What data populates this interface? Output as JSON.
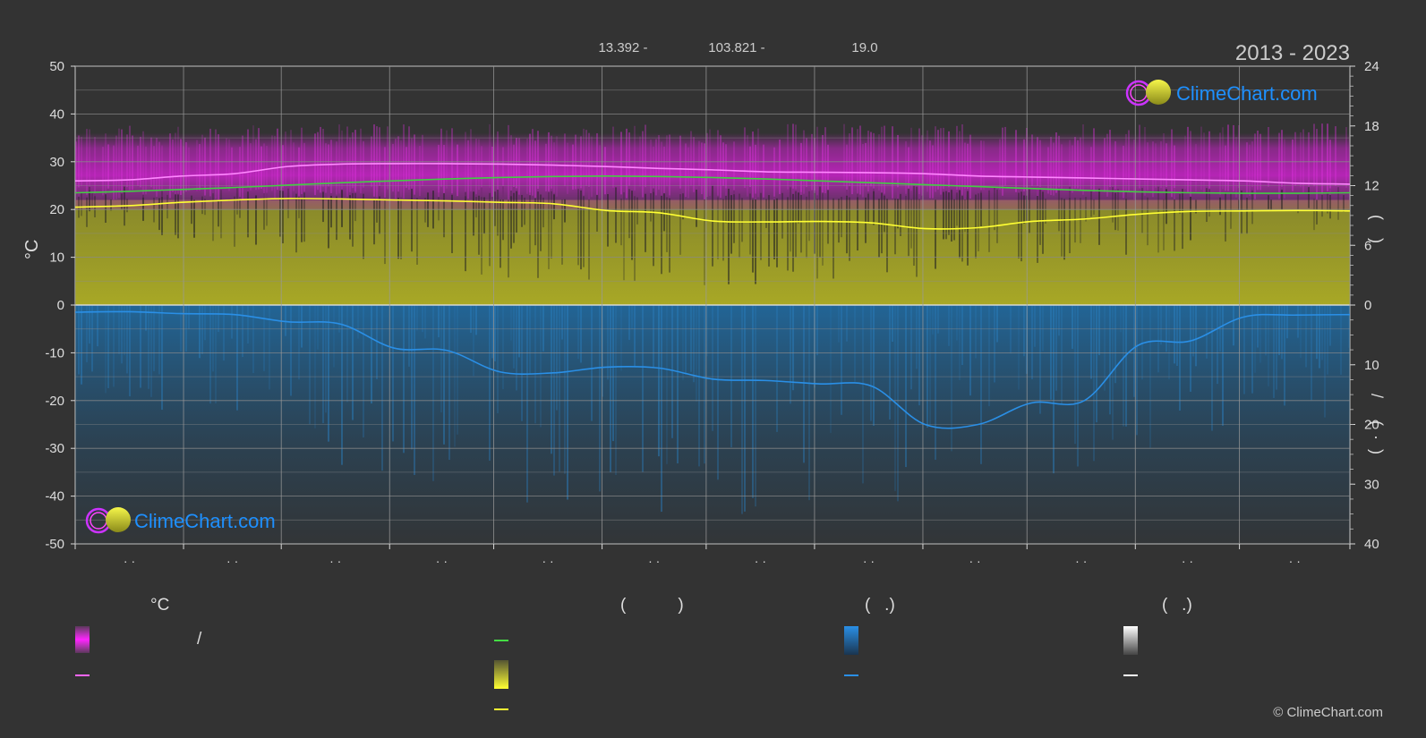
{
  "header": {
    "coord_lat": "13.392 -",
    "coord_lon": "103.821 -",
    "elevation": "19.0",
    "period": "2013 - 2023"
  },
  "brand": {
    "logo_text": "ClimeChart.com",
    "copyright": "© ClimeChart.com"
  },
  "colors": {
    "background": "#333333",
    "max_temp_band": "#cc22cc",
    "sunshine_fill": "#b3b31a",
    "rain_fill": "#1f6ea8",
    "daylight_line": "#44cc44",
    "mean_max_line": "#ff88ff",
    "sunshine_line": "#ffff33",
    "rain_line": "#2a8fe6",
    "logo_text": "#1e90ff"
  },
  "axes": {
    "left_unit": "°C",
    "left_ticks": [
      "50",
      "40",
      "30",
      "20",
      "10",
      "0",
      "-10",
      "-20",
      "-30",
      "-40",
      "-50"
    ],
    "right_top_ticks": [
      "24",
      "18",
      "12",
      "6",
      "0"
    ],
    "right_bottom_ticks": [
      "10",
      "20",
      "30",
      "40"
    ],
    "right_top_label": "(    )",
    "right_bottom_label": "/     (  ·  )",
    "month_labels": [
      "· ·",
      "· ·",
      "· ·",
      "· ·",
      "· ·",
      "· ·",
      "· ·",
      "· ·",
      "· ·",
      "· ·",
      "· ·",
      "· ·"
    ]
  },
  "legend": {
    "col1_head": "°C",
    "col1_item1": "/",
    "col2_head": "(           )",
    "col3_head": "(   .)",
    "col4_head": "(   .)"
  },
  "chart_data": {
    "type": "area",
    "title": "",
    "period": "2013 - 2023",
    "left_axis": {
      "label": "°C",
      "range": [
        -50,
        50
      ],
      "step": 10
    },
    "right_axis_top": {
      "range": [
        0,
        24
      ],
      "ticks": [
        0,
        6,
        12,
        18,
        24
      ]
    },
    "right_axis_bottom": {
      "range": [
        0,
        40
      ],
      "ticks": [
        0,
        10,
        20,
        30,
        40
      ],
      "direction": "down"
    },
    "grid": true,
    "months": 12,
    "x": [
      0,
      0.5,
      1,
      1.5,
      2,
      2.5,
      3,
      3.5,
      4,
      4.5,
      5,
      5.5,
      6,
      6.5,
      7,
      7.5,
      8,
      8.5,
      9,
      9.5,
      10,
      10.5,
      11,
      11.5,
      12
    ],
    "series": [
      {
        "name": "",
        "kind": "line",
        "axis": "left",
        "color": "#ff88ff",
        "values": [
          26,
          26.2,
          27,
          27.5,
          29,
          29.5,
          29.6,
          29.6,
          29.5,
          29.3,
          29.0,
          28.6,
          28.3,
          27.9,
          27.8,
          27.7,
          27.5,
          27.0,
          26.8,
          26.6,
          26.4,
          26.2,
          26.0,
          25.5,
          25.3
        ]
      },
      {
        "name": "",
        "kind": "line",
        "axis": "left",
        "color": "#44cc44",
        "values": [
          23.5,
          23.8,
          24.2,
          24.6,
          25.1,
          25.6,
          26.0,
          26.4,
          26.7,
          26.9,
          27.0,
          26.9,
          26.7,
          26.4,
          26.0,
          25.6,
          25.2,
          24.8,
          24.4,
          24.0,
          23.7,
          23.5,
          23.4,
          23.4,
          23.5
        ]
      },
      {
        "name": "",
        "kind": "line",
        "axis": "left",
        "color": "#ffff33",
        "values": [
          20.5,
          20.8,
          21.5,
          22.0,
          22.3,
          22.2,
          22.0,
          21.8,
          21.5,
          21.2,
          19.8,
          19.3,
          17.6,
          17.4,
          17.5,
          17.2,
          16.0,
          16.2,
          17.5,
          18.0,
          19.0,
          19.6,
          19.7,
          19.8,
          19.7
        ]
      },
      {
        "name": "",
        "kind": "line",
        "axis": "left",
        "color": "#2a8fe6",
        "values": [
          -1.5,
          -1.4,
          -1.8,
          -2.0,
          -3.5,
          -4.0,
          -9.0,
          -9.5,
          -14.0,
          -14.2,
          -13.0,
          -13.2,
          -15.5,
          -15.8,
          -16.5,
          -17.0,
          -25.0,
          -25.0,
          -20.5,
          -20.0,
          -8.5,
          -7.5,
          -2.5,
          -2.1,
          -2.0
        ]
      }
    ],
    "bands": [
      {
        "name": "",
        "axis": "left",
        "color": "#cc22cc",
        "min": 22,
        "max": 33
      },
      {
        "name": "",
        "axis": "left",
        "color": "#b3b31a",
        "min": 0,
        "max": 22
      },
      {
        "name": "",
        "axis": "left",
        "color": "#1f6ea8",
        "min": -50,
        "max": 0
      }
    ]
  }
}
